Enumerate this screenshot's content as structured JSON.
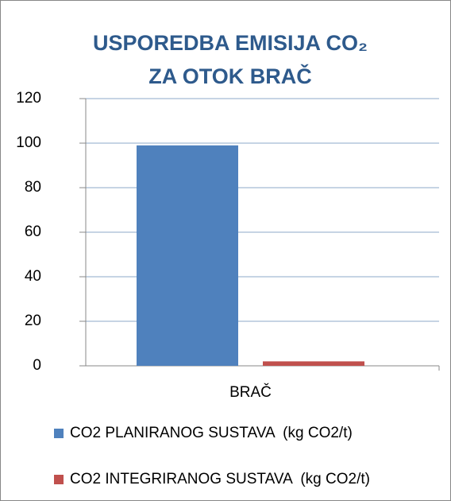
{
  "chart_data": {
    "type": "bar",
    "title": [
      "USPOREDBA EMISIJA CO₂",
      "ZA OTOK BRAČ"
    ],
    "categories": [
      "BRAČ"
    ],
    "series": [
      {
        "name": "CO2 PLANIRANOG SUSTAVA  (kg CO2/t)",
        "color": "#4f81bd",
        "values": [
          99
        ]
      },
      {
        "name": "CO2 INTEGRIRANOG SUSTAVA  (kg CO2/t)",
        "color": "#c0504d",
        "values": [
          2
        ]
      }
    ],
    "ylim": [
      0,
      120
    ],
    "yticks": [
      0,
      20,
      40,
      60,
      80,
      100,
      120
    ],
    "grid": true,
    "legend": "bottom"
  }
}
